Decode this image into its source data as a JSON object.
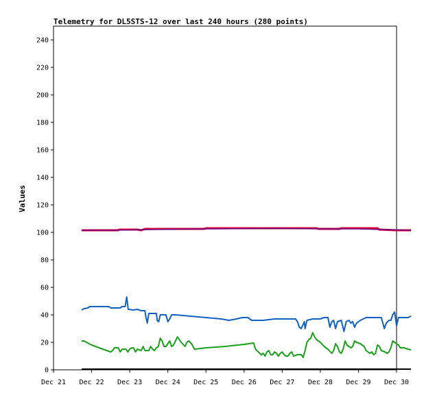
{
  "chart_data": {
    "type": "line",
    "title": "Telemetry for DL5STS-12 over last 240 hours (280 points)",
    "xlabel": "",
    "ylabel": "Values",
    "ylim": [
      0,
      250
    ],
    "yticks": [
      0,
      20,
      40,
      60,
      80,
      100,
      120,
      140,
      160,
      180,
      200,
      220,
      240
    ],
    "xlim": [
      0,
      9
    ],
    "xticks": [
      0,
      1,
      2,
      3,
      4,
      5,
      6,
      7,
      8,
      9
    ],
    "xtick_labels": [
      "Dec 21",
      "Dec 22",
      "Dec 23",
      "Dec 24",
      "Dec 25",
      "Dec 26",
      "Dec 27",
      "Dec 28",
      "Dec 29",
      "Dec 30"
    ],
    "grid": false,
    "legend": "none",
    "series": [
      {
        "color": "#e0003a",
        "width": 3,
        "points": [
          [
            0.74,
            101.5
          ],
          [
            1.7,
            101.5
          ],
          [
            1.72,
            102
          ],
          [
            2.2,
            102
          ],
          [
            2.3,
            101.5
          ],
          [
            2.4,
            102.5
          ],
          [
            3.95,
            102.5
          ],
          [
            4.0,
            103
          ],
          [
            6.9,
            103
          ],
          [
            6.95,
            102.5
          ],
          [
            7.5,
            102.5
          ],
          [
            7.55,
            103
          ],
          [
            8.5,
            103
          ],
          [
            8.55,
            102
          ],
          [
            9.0,
            101.5
          ],
          [
            9.38,
            101.5
          ]
        ]
      },
      {
        "color": "#6a0080",
        "width": 1.5,
        "points": [
          [
            0.74,
            101.5
          ],
          [
            1.5,
            101.5
          ],
          [
            2.5,
            102
          ],
          [
            4.0,
            102.5
          ],
          [
            6.0,
            102.8
          ],
          [
            7.0,
            102.5
          ],
          [
            8.0,
            102.5
          ],
          [
            9.38,
            101.5
          ]
        ]
      },
      {
        "color": "#1060c0",
        "width": 2,
        "points": [
          [
            0.74,
            43.5
          ],
          [
            0.8,
            44.5
          ],
          [
            0.9,
            45
          ],
          [
            0.95,
            46
          ],
          [
            1.1,
            46
          ],
          [
            1.3,
            46
          ],
          [
            1.45,
            46
          ],
          [
            1.5,
            45
          ],
          [
            1.75,
            45
          ],
          [
            1.8,
            46
          ],
          [
            1.88,
            46
          ],
          [
            1.92,
            53
          ],
          [
            1.96,
            44
          ],
          [
            2.1,
            43.5
          ],
          [
            2.2,
            44
          ],
          [
            2.3,
            43
          ],
          [
            2.4,
            43
          ],
          [
            2.42,
            39
          ],
          [
            2.46,
            34
          ],
          [
            2.5,
            41
          ],
          [
            2.6,
            41
          ],
          [
            2.7,
            41
          ],
          [
            2.72,
            36
          ],
          [
            2.76,
            35
          ],
          [
            2.8,
            40
          ],
          [
            2.9,
            40
          ],
          [
            2.95,
            40
          ],
          [
            3.0,
            35
          ],
          [
            3.05,
            37
          ],
          [
            3.1,
            40
          ],
          [
            3.2,
            40
          ],
          [
            3.6,
            39
          ],
          [
            4.0,
            38
          ],
          [
            4.4,
            37
          ],
          [
            4.6,
            36
          ],
          [
            4.8,
            37
          ],
          [
            4.95,
            38
          ],
          [
            5.1,
            38
          ],
          [
            5.2,
            36
          ],
          [
            5.5,
            36
          ],
          [
            5.8,
            37
          ],
          [
            6.1,
            37
          ],
          [
            6.35,
            37
          ],
          [
            6.4,
            35
          ],
          [
            6.45,
            31
          ],
          [
            6.5,
            30
          ],
          [
            6.58,
            35
          ],
          [
            6.6,
            30
          ],
          [
            6.65,
            36
          ],
          [
            6.8,
            37
          ],
          [
            7.0,
            37
          ],
          [
            7.1,
            38
          ],
          [
            7.2,
            38
          ],
          [
            7.25,
            31
          ],
          [
            7.3,
            35
          ],
          [
            7.35,
            36
          ],
          [
            7.4,
            30
          ],
          [
            7.45,
            35
          ],
          [
            7.55,
            36
          ],
          [
            7.62,
            28
          ],
          [
            7.68,
            35
          ],
          [
            7.75,
            36
          ],
          [
            7.8,
            34
          ],
          [
            7.85,
            35
          ],
          [
            7.9,
            31
          ],
          [
            7.95,
            34
          ],
          [
            8.05,
            36
          ],
          [
            8.2,
            38
          ],
          [
            8.6,
            38
          ],
          [
            8.68,
            30
          ],
          [
            8.73,
            34
          ],
          [
            8.8,
            36
          ],
          [
            8.85,
            36
          ],
          [
            8.9,
            40
          ],
          [
            8.95,
            42
          ],
          [
            9.0,
            32
          ],
          [
            9.05,
            38
          ],
          [
            9.2,
            38
          ],
          [
            9.3,
            38
          ],
          [
            9.38,
            39
          ]
        ]
      },
      {
        "color": "#18a018",
        "width": 2,
        "points": [
          [
            0.74,
            21
          ],
          [
            0.8,
            21
          ],
          [
            1.0,
            18
          ],
          [
            1.2,
            16
          ],
          [
            1.3,
            15
          ],
          [
            1.5,
            13
          ],
          [
            1.55,
            14
          ],
          [
            1.6,
            16
          ],
          [
            1.7,
            16
          ],
          [
            1.75,
            13
          ],
          [
            1.8,
            15
          ],
          [
            1.9,
            15
          ],
          [
            1.95,
            13
          ],
          [
            2.0,
            15
          ],
          [
            2.05,
            16
          ],
          [
            2.1,
            16
          ],
          [
            2.15,
            13
          ],
          [
            2.2,
            15
          ],
          [
            2.3,
            14
          ],
          [
            2.35,
            17
          ],
          [
            2.4,
            14
          ],
          [
            2.5,
            14
          ],
          [
            2.55,
            17
          ],
          [
            2.6,
            15
          ],
          [
            2.65,
            14
          ],
          [
            2.7,
            16
          ],
          [
            2.75,
            17
          ],
          [
            2.8,
            23
          ],
          [
            2.85,
            21
          ],
          [
            2.9,
            17
          ],
          [
            2.95,
            17
          ],
          [
            3.05,
            21
          ],
          [
            3.1,
            17
          ],
          [
            3.15,
            18
          ],
          [
            3.25,
            24
          ],
          [
            3.3,
            22
          ],
          [
            3.35,
            20
          ],
          [
            3.45,
            17
          ],
          [
            3.5,
            20
          ],
          [
            3.55,
            21
          ],
          [
            3.62,
            19
          ],
          [
            3.7,
            15
          ],
          [
            4.0,
            16
          ],
          [
            4.5,
            17
          ],
          [
            5.0,
            18.5
          ],
          [
            5.25,
            19.5
          ],
          [
            5.3,
            15
          ],
          [
            5.45,
            11
          ],
          [
            5.5,
            12
          ],
          [
            5.55,
            10
          ],
          [
            5.6,
            13
          ],
          [
            5.65,
            14
          ],
          [
            5.7,
            11
          ],
          [
            5.75,
            11
          ],
          [
            5.8,
            13
          ],
          [
            5.85,
            12
          ],
          [
            5.9,
            10
          ],
          [
            5.95,
            12
          ],
          [
            6.0,
            13
          ],
          [
            6.05,
            11
          ],
          [
            6.1,
            10
          ],
          [
            6.15,
            10
          ],
          [
            6.2,
            12
          ],
          [
            6.25,
            13
          ],
          [
            6.3,
            10
          ],
          [
            6.4,
            11
          ],
          [
            6.5,
            11
          ],
          [
            6.55,
            9
          ],
          [
            6.6,
            14
          ],
          [
            6.65,
            20
          ],
          [
            6.7,
            22
          ],
          [
            6.75,
            23
          ],
          [
            6.8,
            27
          ],
          [
            6.85,
            24
          ],
          [
            6.9,
            22
          ],
          [
            7.0,
            20
          ],
          [
            7.1,
            17
          ],
          [
            7.2,
            15
          ],
          [
            7.3,
            12
          ],
          [
            7.35,
            14
          ],
          [
            7.4,
            19
          ],
          [
            7.45,
            17
          ],
          [
            7.5,
            13
          ],
          [
            7.55,
            12
          ],
          [
            7.6,
            15
          ],
          [
            7.65,
            21
          ],
          [
            7.7,
            18
          ],
          [
            7.75,
            17
          ],
          [
            7.8,
            16
          ],
          [
            7.85,
            17
          ],
          [
            7.9,
            21
          ],
          [
            7.95,
            20
          ],
          [
            8.05,
            19
          ],
          [
            8.15,
            17
          ],
          [
            8.2,
            14
          ],
          [
            8.3,
            12
          ],
          [
            8.35,
            13
          ],
          [
            8.4,
            11
          ],
          [
            8.45,
            12
          ],
          [
            8.5,
            18
          ],
          [
            8.55,
            17
          ],
          [
            8.6,
            14
          ],
          [
            8.7,
            13
          ],
          [
            8.75,
            12
          ],
          [
            8.8,
            13
          ],
          [
            8.85,
            16
          ],
          [
            8.9,
            21
          ],
          [
            8.95,
            20
          ],
          [
            9.05,
            18
          ],
          [
            9.1,
            16
          ],
          [
            9.2,
            16
          ],
          [
            9.3,
            15
          ],
          [
            9.38,
            14.5
          ]
        ]
      },
      {
        "color": "#000000",
        "width": 2,
        "points": [
          [
            0.74,
            0.5
          ],
          [
            9.38,
            0.5
          ]
        ]
      }
    ]
  }
}
